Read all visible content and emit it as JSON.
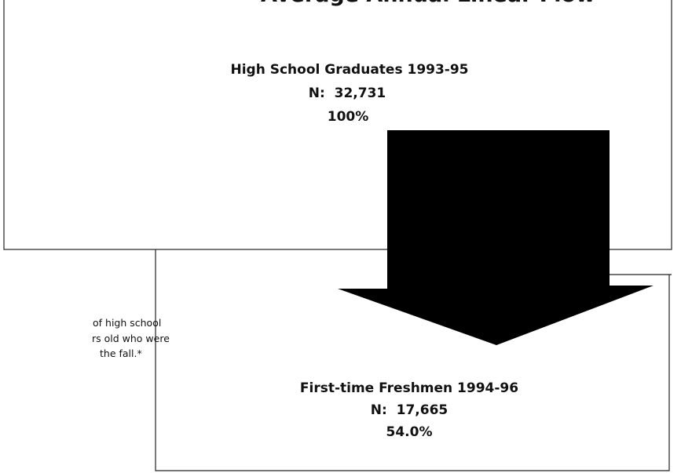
{
  "title": "Average Annual Linear Flow",
  "nodes": [
    {
      "label": "High School Graduates 1993-95",
      "count": "N:  32,731",
      "percent": "100%"
    },
    {
      "label": "First-time Freshmen 1994-96",
      "count": "N:  17,665",
      "percent": "54.0%"
    }
  ],
  "note": [
    "of high school",
    "rs old who were",
    "the fall.*"
  ]
}
